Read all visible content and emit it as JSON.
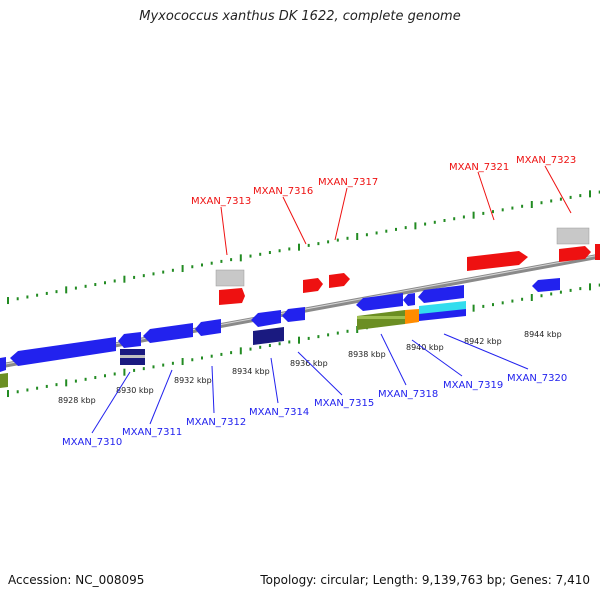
{
  "header": {
    "title": "Myxococcus xanthus DK 1622, complete genome"
  },
  "footer": {
    "accession": "Accession: NC_008095",
    "summary": "Topology: circular; Length: 9,139,763 bp; Genes: 7,410"
  },
  "colors": {
    "forward_gene": "#ee1111",
    "forward_rna": "#c8c8c8",
    "reverse_gene": "#2222ee",
    "reverse_dark": "#1a1a80",
    "olive_feature": "#6b8e23",
    "orange_feature": "#ff8c00",
    "cyan_feature": "#33ddee",
    "ticks": "#228b22",
    "backbone": "#8a8a8a"
  },
  "scale_labels": [
    "8928 kbp",
    "8930 kbp",
    "8932 kbp",
    "8934 kbp",
    "8936 kbp",
    "8938 kbp",
    "8940 kbp",
    "8942 kbp",
    "8944 kbp"
  ],
  "top_gene_labels": [
    "MXAN_7313",
    "MXAN_7316",
    "MXAN_7317",
    "MXAN_7321",
    "MXAN_7323"
  ],
  "bottom_gene_labels": [
    "MXAN_7310",
    "MXAN_7311",
    "MXAN_7312",
    "MXAN_7314",
    "MXAN_7315",
    "MXAN_7318",
    "MXAN_7319",
    "MXAN_7320"
  ]
}
